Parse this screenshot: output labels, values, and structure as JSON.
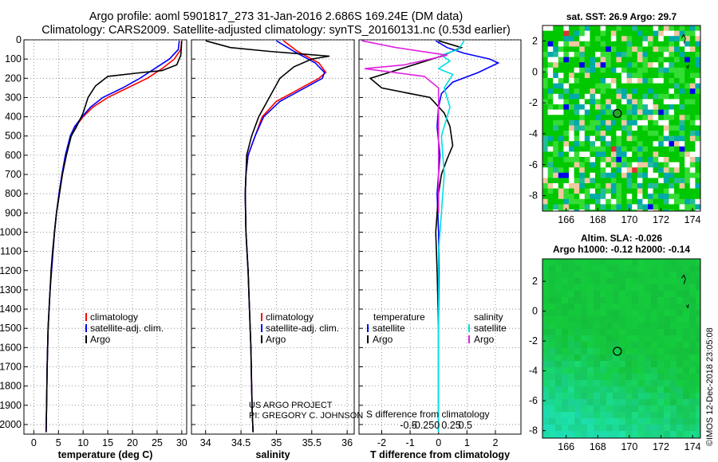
{
  "title": {
    "line1": "Argo profile: aoml 5901817_273 31-Jan-2016 2.686S 169.24E (DM data)",
    "line2": "Climatology: CARS2009. Satellite-adjusted climatology: synTS_20160131.nc (0.53d earlier)"
  },
  "credit": {
    "line1": "US ARGO PROJECT",
    "line2": "PI: GREGORY C. JOHNSON"
  },
  "stamp": "©IMOS 12-Dec-2018 23:05:08",
  "colors": {
    "climatology": "#ff0000",
    "satellite": "#0000ff",
    "argo": "#000000",
    "t_satellite": "#0000ff",
    "s_satellite": "#00e0e0",
    "s_argo": "#e020e0"
  },
  "chart_data": [
    {
      "type": "line",
      "id": "temperature",
      "xlabel": "temperature (deg C)",
      "xlim": [
        -2,
        31
      ],
      "ylim": [
        2050,
        0
      ],
      "xticks": [
        0,
        5,
        10,
        15,
        20,
        25,
        30
      ],
      "yticks": [
        0,
        100,
        200,
        300,
        400,
        500,
        600,
        700,
        800,
        900,
        1000,
        1100,
        1200,
        1300,
        1400,
        1500,
        1600,
        1700,
        1800,
        1900,
        2000
      ],
      "legend": [
        "climatology",
        "satellite-adj. clim.",
        "Argo"
      ],
      "series": [
        {
          "name": "climatology",
          "color": "#ff0000",
          "x": [
            30,
            29.8,
            28.5,
            26,
            23,
            19,
            15,
            12,
            10,
            8.5,
            7.5,
            6.5,
            5.8,
            5.2,
            4.6,
            4.2,
            3.9,
            3.6,
            3.3,
            3.1,
            2.9,
            2.7,
            2.6,
            2.5
          ],
          "y": [
            5,
            50,
            100,
            150,
            200,
            250,
            300,
            350,
            400,
            450,
            500,
            600,
            700,
            800,
            900,
            1000,
            1100,
            1200,
            1300,
            1400,
            1500,
            1700,
            1900,
            2040
          ]
        },
        {
          "name": "satellite-adj. clim.",
          "color": "#0000ff",
          "x": [
            29.5,
            29.3,
            27.5,
            24.5,
            21.5,
            18,
            14,
            11.5,
            9.8,
            8.3,
            7.4,
            6.4,
            5.7,
            5.1,
            4.6,
            4.2,
            3.9,
            3.6,
            3.3,
            3.1,
            2.9,
            2.7,
            2.6,
            2.5
          ],
          "y": [
            5,
            50,
            100,
            150,
            200,
            250,
            300,
            350,
            400,
            450,
            500,
            600,
            700,
            800,
            900,
            1000,
            1100,
            1200,
            1300,
            1400,
            1500,
            1700,
            1900,
            2040
          ]
        },
        {
          "name": "Argo",
          "color": "#000000",
          "x": [
            30,
            29.8,
            29,
            26,
            22,
            15,
            12.5,
            11,
            10,
            8.7,
            7.6,
            6.6,
            5.8,
            5.2,
            4.6,
            4.2,
            3.8,
            3.5,
            3.3,
            3.1,
            2.9,
            2.7,
            2.6,
            2.5
          ],
          "y": [
            5,
            80,
            130,
            160,
            170,
            190,
            240,
            300,
            380,
            450,
            500,
            600,
            700,
            800,
            900,
            1000,
            1100,
            1200,
            1300,
            1400,
            1500,
            1700,
            1900,
            2040
          ]
        }
      ]
    },
    {
      "type": "line",
      "id": "salinity",
      "xlabel": "salinity",
      "xlim": [
        33.8,
        36.1
      ],
      "ylim": [
        2050,
        0
      ],
      "xticks": [
        34,
        34.5,
        35,
        35.5,
        36
      ],
      "legend": [
        "climatology",
        "satellite-adj. clim.",
        "Argo"
      ],
      "series": [
        {
          "name": "climatology",
          "color": "#ff0000",
          "x": [
            35.1,
            35.3,
            35.6,
            35.7,
            35.6,
            35.35,
            35.0,
            34.8,
            34.7,
            34.6,
            34.57,
            34.56,
            34.57,
            34.6,
            34.62,
            34.64,
            34.65,
            34.66,
            34.67
          ],
          "y": [
            5,
            60,
            120,
            170,
            200,
            250,
            320,
            400,
            500,
            600,
            700,
            800,
            1000,
            1200,
            1400,
            1600,
            1800,
            1950,
            2040
          ]
        },
        {
          "name": "satellite-adj. clim.",
          "color": "#0000ff",
          "x": [
            35.0,
            35.25,
            35.55,
            35.68,
            35.65,
            35.4,
            35.05,
            34.82,
            34.7,
            34.6,
            34.57,
            34.56,
            34.57,
            34.6,
            34.62,
            34.64,
            34.65,
            34.66,
            34.67
          ],
          "y": [
            5,
            60,
            120,
            170,
            200,
            250,
            320,
            400,
            500,
            600,
            700,
            800,
            1000,
            1200,
            1400,
            1600,
            1800,
            1950,
            2040
          ]
        },
        {
          "name": "Argo",
          "color": "#000000",
          "x": [
            34.0,
            34.35,
            34.9,
            35.4,
            35.75,
            35.5,
            35.25,
            35.05,
            34.9,
            34.75,
            34.65,
            34.58,
            34.57,
            34.56,
            34.57,
            34.6,
            34.62,
            34.64,
            34.65,
            34.66,
            34.67
          ],
          "y": [
            5,
            40,
            60,
            75,
            85,
            100,
            140,
            200,
            300,
            400,
            500,
            600,
            700,
            800,
            1000,
            1200,
            1400,
            1600,
            1800,
            1950,
            2040
          ]
        }
      ]
    },
    {
      "type": "line",
      "id": "differences",
      "xlabel": "T difference from climatology",
      "top_label": "S difference from climatology",
      "xlim": [
        -2.8,
        2.9
      ],
      "ylim": [
        2050,
        0
      ],
      "xticks": [
        -2,
        -1,
        0,
        1,
        2
      ],
      "xtick_labels": [
        "-2",
        "-1",
        "0",
        "1",
        "2"
      ],
      "sticks_labels": [
        "-0.5",
        "-0.25",
        "0",
        "0.25",
        "0.5"
      ],
      "legend_left_header": "temperature",
      "legend_right_header": "salinity",
      "legend_left": [
        "satellite",
        "Argo"
      ],
      "legend_right": [
        "satellite",
        "Argo"
      ],
      "series": [
        {
          "name": "T satellite",
          "color": "#0000ff",
          "x": [
            -0.1,
            0.3,
            0.9,
            1.8,
            2.1,
            1.4,
            0.5,
            0.1,
            0.0,
            -0.05,
            0.05,
            -0.05,
            0.0,
            0.02,
            0.0,
            0.0,
            0.0,
            0.0
          ],
          "y": [
            5,
            40,
            70,
            100,
            120,
            170,
            220,
            280,
            350,
            450,
            600,
            800,
            1000,
            1200,
            1500,
            1800,
            1950,
            2040
          ]
        },
        {
          "name": "T Argo",
          "color": "#000000",
          "x": [
            0.0,
            0.8,
            0.1,
            -2.4,
            -2.0,
            -0.3,
            0.2,
            0.4,
            0.5,
            0.3,
            0.1,
            0.0,
            -0.1,
            -0.05,
            0.0,
            0.0,
            0.0,
            0.0
          ],
          "y": [
            5,
            40,
            85,
            200,
            250,
            300,
            380,
            450,
            550,
            620,
            700,
            800,
            1000,
            1200,
            1500,
            1800,
            1950,
            2040
          ]
        },
        {
          "name": "S satellite",
          "color": "#00e0e0",
          "x": [
            0.9,
            0.7,
            0.1,
            0.4,
            0.0,
            0.5,
            0.2,
            0.4,
            0.1,
            0.2,
            0.1,
            0.0,
            0.0,
            0.0,
            0.0,
            0.0
          ],
          "y": [
            5,
            50,
            80,
            110,
            150,
            180,
            250,
            350,
            500,
            700,
            900,
            1100,
            1300,
            1600,
            1900,
            2040
          ]
        },
        {
          "name": "S Argo",
          "color": "#e020e0",
          "x": [
            -2.7,
            -1.5,
            0.3,
            -1.2,
            -2.6,
            -0.5,
            0.0,
            0.0,
            0.0,
            0.0
          ],
          "y": [
            5,
            40,
            80,
            130,
            150,
            190,
            250,
            400,
            700,
            900
          ]
        }
      ]
    },
    {
      "type": "heatmap",
      "id": "sst-map",
      "title": "sat. SST: 26.9 Argo: 29.7",
      "xlim": [
        164.5,
        174.5
      ],
      "ylim": [
        -9,
        3
      ],
      "xticks": [
        166,
        168,
        170,
        172,
        174
      ],
      "yticks": [
        -8,
        -6,
        -4,
        -2,
        0,
        2
      ],
      "marker": {
        "lon": 169.24,
        "lat": -2.686
      },
      "palette": [
        "#00c800",
        "#33dd33",
        "#00aaaa",
        "#22bb99",
        "#f0c8a0",
        "#ffffff",
        "#0000ee",
        "#e03030"
      ]
    },
    {
      "type": "heatmap",
      "id": "sla-map",
      "title_line1": "Altim. SLA: -0.026",
      "title_line2": "Argo h1000: -0.12 h2000: -0.14",
      "xlim": [
        164.5,
        174.5
      ],
      "ylim": [
        -8.5,
        3.5
      ],
      "xticks": [
        166,
        168,
        170,
        172,
        174
      ],
      "yticks": [
        -8,
        -6,
        -4,
        -2,
        0,
        2
      ],
      "marker": {
        "lon": 169.24,
        "lat": -2.686
      }
    }
  ]
}
